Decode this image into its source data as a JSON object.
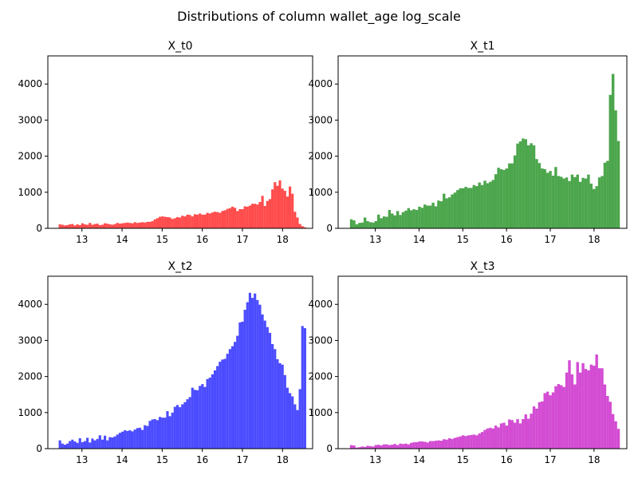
{
  "figure": {
    "suptitle": "Distributions of column wallet_age log_scale"
  },
  "chart_data": [
    {
      "type": "bar",
      "title": "X_t0",
      "color": "#ff0000",
      "opacity": 0.7,
      "xlim": [
        12.15,
        18.75
      ],
      "ylim": [
        0,
        4780
      ],
      "xticks": [
        13,
        14,
        15,
        16,
        17,
        18
      ],
      "yticks": [
        0,
        1000,
        2000,
        3000,
        4000
      ],
      "bins": {
        "start": 12.42,
        "end": 18.59
      },
      "counts": [
        110,
        100,
        80,
        90,
        110,
        120,
        80,
        110,
        90,
        140,
        110,
        100,
        150,
        100,
        120,
        130,
        90,
        100,
        140,
        130,
        110,
        100,
        120,
        150,
        130,
        140,
        150,
        160,
        150,
        140,
        170,
        150,
        160,
        170,
        160,
        180,
        180,
        200,
        250,
        280,
        320,
        330,
        320,
        310,
        300,
        260,
        280,
        310,
        300,
        350,
        330,
        380,
        370,
        330,
        390,
        380,
        410,
        380,
        380,
        430,
        410,
        440,
        460,
        450,
        430,
        480,
        500,
        540,
        560,
        600,
        570,
        480,
        530,
        530,
        610,
        600,
        630,
        680,
        680,
        660,
        730,
        900,
        620,
        760,
        810,
        1080,
        1280,
        1180,
        1330,
        1100,
        1040,
        880,
        1160,
        960,
        460,
        300,
        120,
        60,
        30
      ]
    },
    {
      "type": "bar",
      "title": "X_t1",
      "color": "#008000",
      "opacity": 0.7,
      "xlim": [
        12.15,
        18.75
      ],
      "ylim": [
        0,
        4780
      ],
      "xticks": [
        13,
        14,
        15,
        16,
        17,
        18
      ],
      "yticks": [
        0,
        1000,
        2000,
        3000,
        4000
      ],
      "bins": {
        "start": 12.42,
        "end": 18.59
      },
      "counts": [
        250,
        220,
        110,
        150,
        160,
        300,
        200,
        170,
        160,
        200,
        380,
        280,
        330,
        320,
        510,
        410,
        360,
        480,
        370,
        450,
        490,
        560,
        500,
        530,
        510,
        600,
        570,
        660,
        630,
        630,
        710,
        610,
        770,
        750,
        960,
        830,
        860,
        940,
        990,
        1060,
        1110,
        1110,
        1150,
        1120,
        1120,
        1200,
        1170,
        1270,
        1200,
        1320,
        1250,
        1290,
        1340,
        1500,
        1680,
        1640,
        1620,
        1660,
        1800,
        1800,
        2020,
        2350,
        2410,
        2490,
        2470,
        2300,
        2360,
        2300,
        1920,
        1810,
        1660,
        1640,
        1540,
        1590,
        1460,
        1700,
        1450,
        1430,
        1380,
        1410,
        1310,
        1490,
        1420,
        1490,
        1290,
        1400,
        1380,
        1490,
        1240,
        1090,
        1170,
        1410,
        1450,
        1820,
        1870,
        3700,
        4280,
        3270,
        2420
      ]
    },
    {
      "type": "bar",
      "title": "X_t2",
      "color": "#0000ff",
      "opacity": 0.7,
      "xlim": [
        12.15,
        18.75
      ],
      "ylim": [
        0,
        4780
      ],
      "xticks": [
        13,
        14,
        15,
        16,
        17,
        18
      ],
      "yticks": [
        0,
        1000,
        2000,
        3000,
        4000
      ],
      "bins": {
        "start": 12.42,
        "end": 18.59
      },
      "counts": [
        230,
        140,
        110,
        140,
        210,
        250,
        200,
        160,
        290,
        180,
        210,
        300,
        170,
        280,
        230,
        270,
        370,
        250,
        360,
        230,
        320,
        310,
        340,
        390,
        440,
        470,
        510,
        490,
        510,
        480,
        530,
        570,
        580,
        520,
        650,
        630,
        770,
        810,
        820,
        790,
        880,
        860,
        860,
        1040,
        900,
        1000,
        1160,
        1210,
        1150,
        1230,
        1290,
        1370,
        1430,
        1690,
        1630,
        1620,
        1740,
        1790,
        1710,
        1930,
        1970,
        2060,
        2170,
        2290,
        2410,
        2470,
        2490,
        2630,
        2760,
        2840,
        2960,
        3130,
        3500,
        3520,
        3850,
        4060,
        4320,
        4180,
        4300,
        4120,
        3990,
        3720,
        3550,
        3370,
        3210,
        2900,
        2760,
        2480,
        2370,
        2330,
        2040,
        1690,
        1540,
        1450,
        1230,
        1070,
        1650,
        3400,
        3340
      ]
    },
    {
      "type": "bar",
      "title": "X_t3",
      "color": "#c000c0",
      "opacity": 0.7,
      "xlim": [
        12.15,
        18.75
      ],
      "ylim": [
        0,
        4780
      ],
      "xticks": [
        13,
        14,
        15,
        16,
        17,
        18
      ],
      "yticks": [
        0,
        1000,
        2000,
        3000,
        4000
      ],
      "bins": {
        "start": 12.42,
        "end": 18.59
      },
      "counts": [
        100,
        90,
        30,
        40,
        60,
        50,
        80,
        70,
        60,
        100,
        110,
        90,
        120,
        120,
        100,
        110,
        130,
        100,
        140,
        130,
        140,
        120,
        160,
        180,
        180,
        200,
        200,
        190,
        170,
        210,
        210,
        220,
        230,
        220,
        260,
        250,
        290,
        270,
        300,
        320,
        340,
        370,
        350,
        370,
        380,
        390,
        370,
        420,
        460,
        520,
        560,
        580,
        560,
        640,
        590,
        700,
        720,
        640,
        810,
        790,
        720,
        820,
        700,
        820,
        950,
        830,
        970,
        1170,
        1110,
        1290,
        1310,
        1540,
        1580,
        1480,
        1560,
        1730,
        1790,
        1760,
        1710,
        2110,
        2450,
        2060,
        1780,
        2400,
        2110,
        2370,
        2210,
        2170,
        2330,
        2300,
        2610,
        2230,
        2230,
        1780,
        1460,
        1300,
        960,
        760,
        550
      ]
    }
  ]
}
